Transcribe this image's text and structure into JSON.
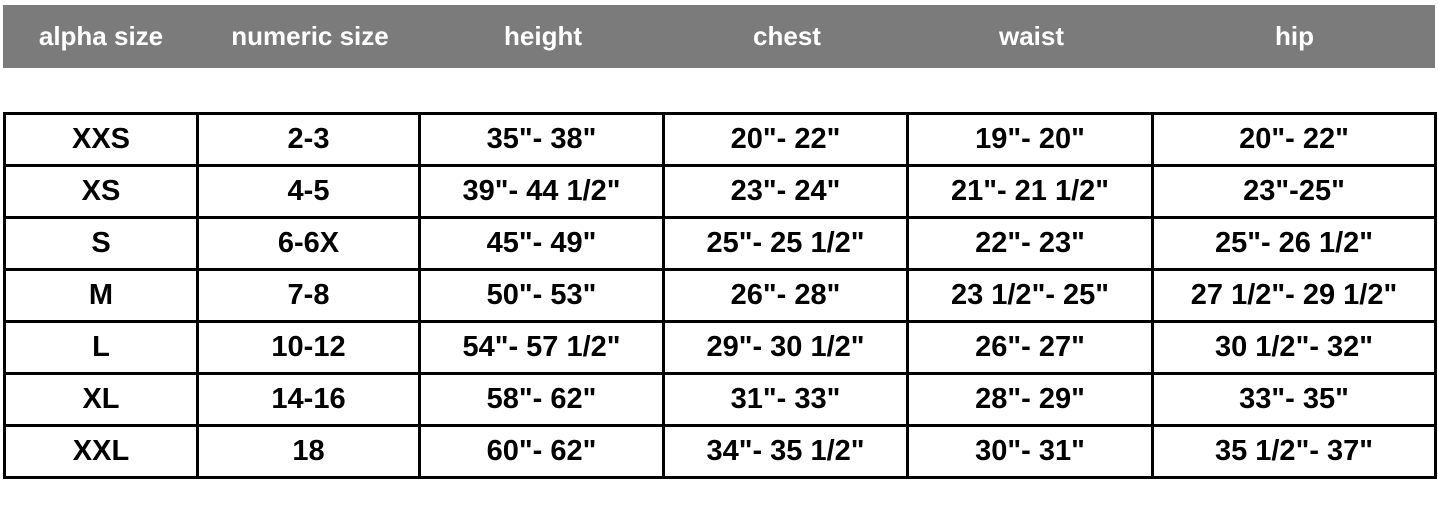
{
  "header": [
    "alpha size",
    "numeric size",
    "height",
    "chest",
    "waist",
    "hip"
  ],
  "rows": [
    [
      "XXS",
      "2-3",
      "35\"- 38\"",
      "20\"- 22\"",
      "19\"- 20\"",
      "20\"- 22\""
    ],
    [
      "XS",
      "4-5",
      "39\"- 44 1/2\"",
      "23\"- 24\"",
      "21\"- 21 1/2\"",
      "23\"-25\""
    ],
    [
      "S",
      "6-6X",
      "45\"- 49\"",
      "25\"- 25 1/2\"",
      "22\"- 23\"",
      "25\"- 26 1/2\""
    ],
    [
      "M",
      "7-8",
      "50\"- 53\"",
      "26\"- 28\"",
      "23 1/2\"- 25\"",
      "27 1/2\"- 29 1/2\""
    ],
    [
      "L",
      "10-12",
      "54\"- 57 1/2\"",
      "29\"- 30 1/2\"",
      "26\"- 27\"",
      "30 1/2\"- 32\""
    ],
    [
      "XL",
      "14-16",
      "58\"- 62\"",
      "31\"- 33\"",
      "28\"- 29\"",
      "33\"- 35\""
    ],
    [
      "XXL",
      "18",
      "60\"- 62\"",
      "34\"- 35 1/2\"",
      "30\"- 31\"",
      "35 1/2\"- 37\""
    ]
  ]
}
